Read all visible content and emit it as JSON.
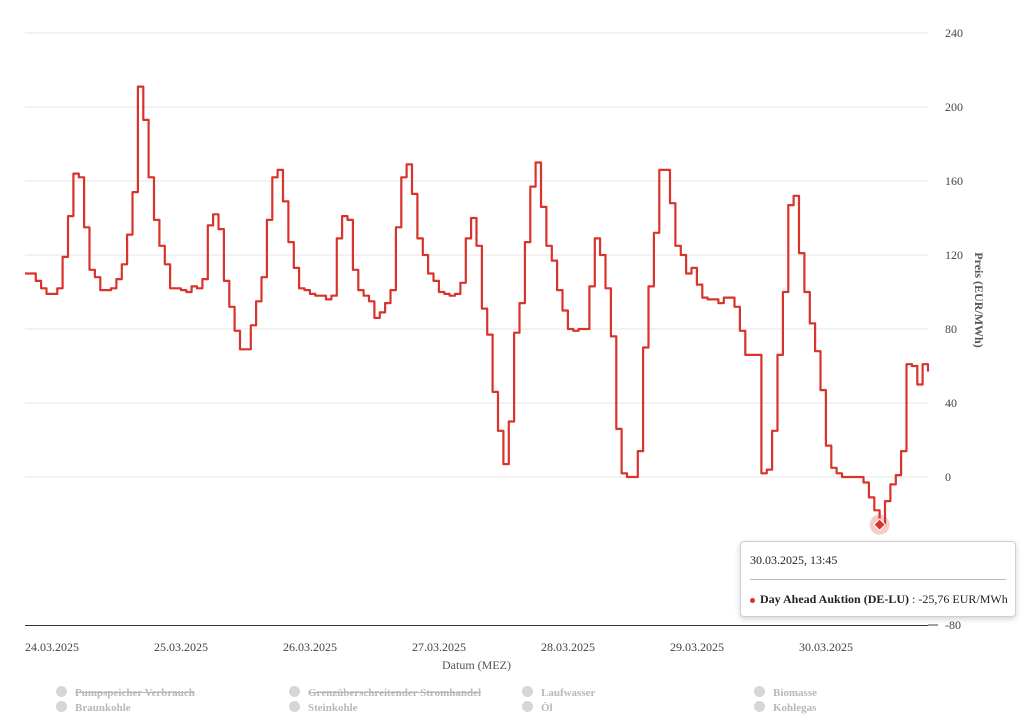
{
  "chart_data": {
    "type": "line",
    "xlabel": "Datum (MEZ)",
    "ylabel": "Preis (EUR/MWh)",
    "ylim": [
      -80,
      240
    ],
    "yticks": [
      240,
      200,
      160,
      120,
      80,
      40,
      0,
      -80
    ],
    "grid": true,
    "x_tick_labels": [
      "24.03.2025",
      "25.03.2025",
      "26.03.2025",
      "27.03.2025",
      "28.03.2025",
      "29.03.2025",
      "30.03.2025"
    ],
    "series": [
      {
        "name": "Day Ahead Auktion (DE-LU)",
        "color": "#d9342b",
        "x_unit": "hours since 24.03.2025 00:00",
        "points": [
          [
            0,
            110
          ],
          [
            1,
            110
          ],
          [
            2,
            106
          ],
          [
            3,
            102
          ],
          [
            4,
            99
          ],
          [
            5,
            99
          ],
          [
            6,
            102
          ],
          [
            7,
            119
          ],
          [
            8,
            141
          ],
          [
            9,
            164
          ],
          [
            10,
            162
          ],
          [
            11,
            135
          ],
          [
            12,
            112
          ],
          [
            13,
            108
          ],
          [
            14,
            101
          ],
          [
            15,
            101
          ],
          [
            16,
            102
          ],
          [
            17,
            107
          ],
          [
            18,
            115
          ],
          [
            19,
            131
          ],
          [
            20,
            154
          ],
          [
            21,
            211
          ],
          [
            22,
            193
          ],
          [
            23,
            162
          ],
          [
            24,
            139
          ],
          [
            25,
            125
          ],
          [
            26,
            115
          ],
          [
            27,
            102
          ],
          [
            28,
            102
          ],
          [
            29,
            101
          ],
          [
            30,
            100
          ],
          [
            31,
            103
          ],
          [
            32,
            102
          ],
          [
            33,
            107
          ],
          [
            34,
            136
          ],
          [
            35,
            142
          ],
          [
            36,
            134
          ],
          [
            37,
            106
          ],
          [
            38,
            92
          ],
          [
            39,
            79
          ],
          [
            40,
            69
          ],
          [
            41,
            69
          ],
          [
            42,
            82
          ],
          [
            43,
            95
          ],
          [
            44,
            108
          ],
          [
            45,
            139
          ],
          [
            46,
            162
          ],
          [
            47,
            166
          ],
          [
            48,
            149
          ],
          [
            49,
            127
          ],
          [
            50,
            113
          ],
          [
            51,
            102
          ],
          [
            52,
            101
          ],
          [
            53,
            99
          ],
          [
            54,
            98
          ],
          [
            55,
            98
          ],
          [
            56,
            96
          ],
          [
            57,
            98
          ],
          [
            58,
            129
          ],
          [
            59,
            141
          ],
          [
            60,
            139
          ],
          [
            61,
            112
          ],
          [
            62,
            101
          ],
          [
            63,
            98
          ],
          [
            64,
            95
          ],
          [
            65,
            86
          ],
          [
            66,
            89
          ],
          [
            67,
            94
          ],
          [
            68,
            101
          ],
          [
            69,
            135
          ],
          [
            70,
            162
          ],
          [
            71,
            169
          ],
          [
            72,
            153
          ],
          [
            73,
            129
          ],
          [
            74,
            120
          ],
          [
            75,
            110
          ],
          [
            76,
            106
          ],
          [
            77,
            100
          ],
          [
            78,
            99
          ],
          [
            79,
            98
          ],
          [
            80,
            99
          ],
          [
            81,
            105
          ],
          [
            82,
            129
          ],
          [
            83,
            140
          ],
          [
            84,
            125
          ],
          [
            85,
            91
          ],
          [
            86,
            77
          ],
          [
            87,
            46
          ],
          [
            88,
            25
          ],
          [
            89,
            7
          ],
          [
            90,
            30
          ],
          [
            91,
            78
          ],
          [
            92,
            94
          ],
          [
            93,
            127
          ],
          [
            94,
            157
          ],
          [
            95,
            170
          ],
          [
            96,
            146
          ],
          [
            97,
            125
          ],
          [
            98,
            117
          ],
          [
            99,
            101
          ],
          [
            100,
            90
          ],
          [
            101,
            80
          ],
          [
            102,
            79
          ],
          [
            103,
            80
          ],
          [
            104,
            80
          ],
          [
            105,
            103
          ],
          [
            106,
            129
          ],
          [
            107,
            120
          ],
          [
            108,
            102
          ],
          [
            109,
            76
          ],
          [
            110,
            26
          ],
          [
            111,
            2
          ],
          [
            112,
            0
          ],
          [
            113,
            0
          ],
          [
            114,
            14
          ],
          [
            115,
            70
          ],
          [
            116,
            103
          ],
          [
            117,
            132
          ],
          [
            118,
            166
          ],
          [
            119,
            166
          ],
          [
            120,
            148
          ],
          [
            121,
            125
          ],
          [
            122,
            120
          ],
          [
            123,
            110
          ],
          [
            124,
            113
          ],
          [
            125,
            104
          ],
          [
            126,
            97
          ],
          [
            127,
            96
          ],
          [
            128,
            96
          ],
          [
            129,
            94
          ],
          [
            130,
            97
          ],
          [
            131,
            97
          ],
          [
            132,
            92
          ],
          [
            133,
            79
          ],
          [
            134,
            66
          ],
          [
            135,
            66
          ],
          [
            136,
            66
          ],
          [
            137,
            2
          ],
          [
            138,
            4
          ],
          [
            139,
            25
          ],
          [
            140,
            66
          ],
          [
            141,
            100
          ],
          [
            142,
            147
          ],
          [
            143,
            152
          ],
          [
            144,
            121
          ],
          [
            145,
            100
          ],
          [
            146,
            83
          ],
          [
            147,
            68
          ],
          [
            148,
            47
          ],
          [
            149,
            17
          ],
          [
            150,
            5
          ],
          [
            151,
            2
          ],
          [
            152,
            0
          ],
          [
            153,
            0
          ],
          [
            154,
            0
          ],
          [
            155,
            0
          ],
          [
            156,
            -3
          ],
          [
            157,
            -11
          ],
          [
            158,
            -18
          ],
          [
            159,
            -25.76
          ],
          [
            160,
            -13
          ],
          [
            161,
            -4
          ],
          [
            162,
            1
          ],
          [
            163,
            14
          ],
          [
            164,
            61
          ],
          [
            165,
            60
          ],
          [
            166,
            50
          ],
          [
            167,
            61
          ],
          [
            168,
            57
          ]
        ]
      }
    ],
    "tooltip": {
      "time": "30.03.2025, 13:45",
      "series": "Day Ahead Auktion (DE-LU)",
      "value": " : -25,76 EUR/MWh",
      "highlight_x": 159,
      "highlight_y": -25.76
    }
  },
  "legend": [
    {
      "label": "Pumpspeicher Verbrauch",
      "struck": true
    },
    {
      "label": "Grenzüberschreitender Stromhandel",
      "struck": true
    },
    {
      "label": "Laufwasser",
      "struck": false
    },
    {
      "label": "Biomasse",
      "struck": false
    },
    {
      "label": "Braunkohle",
      "struck": false
    },
    {
      "label": "Steinkohle",
      "struck": false
    },
    {
      "label": "Öl",
      "struck": false
    },
    {
      "label": "Kohlegas",
      "struck": false
    }
  ]
}
